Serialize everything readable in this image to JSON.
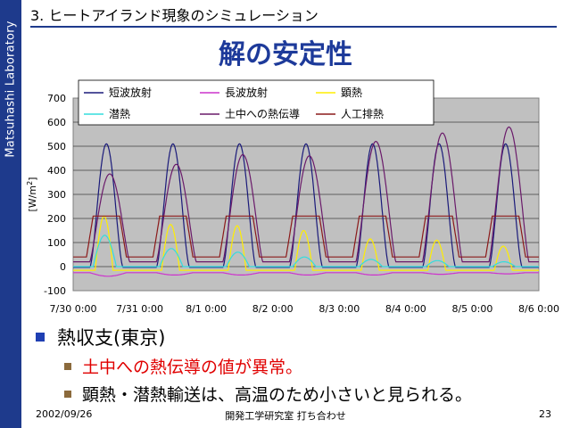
{
  "sidebar": {
    "label": "Matsuhashi Laboratory"
  },
  "header": {
    "section_title": "3. ヒートアイランド現象のシミュレーション",
    "slide_title": "解の安定性"
  },
  "chart_data": {
    "type": "line",
    "ylabel_parts": [
      "[W/m",
      "2",
      "]"
    ],
    "ylim": [
      -100,
      700
    ],
    "yticks": [
      -100,
      0,
      100,
      200,
      300,
      400,
      500,
      600,
      700
    ],
    "x_tick_labels": [
      "7/30 0:00",
      "7/31 0:00",
      "8/1 0:00",
      "8/2 0:00",
      "8/3 0:00",
      "8/4 0:00",
      "8/5 0:00",
      "8/6 0:00"
    ],
    "xlim_days": [
      0,
      7
    ],
    "plot_background": "#c0c0c0",
    "grid": true,
    "legend_position": "top",
    "series": [
      {
        "name": "短波放射",
        "color": "#1a1a7a",
        "peak_day_values": [
          510,
          510,
          510,
          510,
          510,
          510,
          510
        ],
        "night_value": -3
      },
      {
        "name": "長波放射",
        "color": "#cc33cc",
        "peak_day_values": [
          -40,
          -35,
          -35,
          -35,
          -35,
          -32,
          -30
        ],
        "night_value": -25
      },
      {
        "name": "顕熱",
        "color": "#ffee00",
        "peak_day_values": [
          210,
          175,
          170,
          150,
          115,
          110,
          85
        ],
        "night_value": -15
      },
      {
        "name": "潜熱",
        "color": "#33dddd",
        "peak_day_values": [
          130,
          75,
          60,
          40,
          30,
          25,
          20
        ],
        "night_value": 0
      },
      {
        "name": "土中への熱伝導",
        "color": "#6a1a6a",
        "peak_day_values": [
          385,
          425,
          465,
          460,
          520,
          555,
          580
        ],
        "night_value": 20
      },
      {
        "name": "人工排熱",
        "color": "#8b1a1a",
        "peak_day_values": [
          210,
          210,
          210,
          210,
          210,
          210,
          210
        ],
        "night_value": 40
      }
    ]
  },
  "bullets": {
    "main": "熱収支(東京)",
    "sub1": "土中への熱伝導の値が異常。",
    "sub2": "顕熱・潜熱輸送は、高温のため小さいと見られる。"
  },
  "footer": {
    "date": "2002/09/26",
    "center": "開発工学研究室 打ち合わせ",
    "page": "23"
  }
}
